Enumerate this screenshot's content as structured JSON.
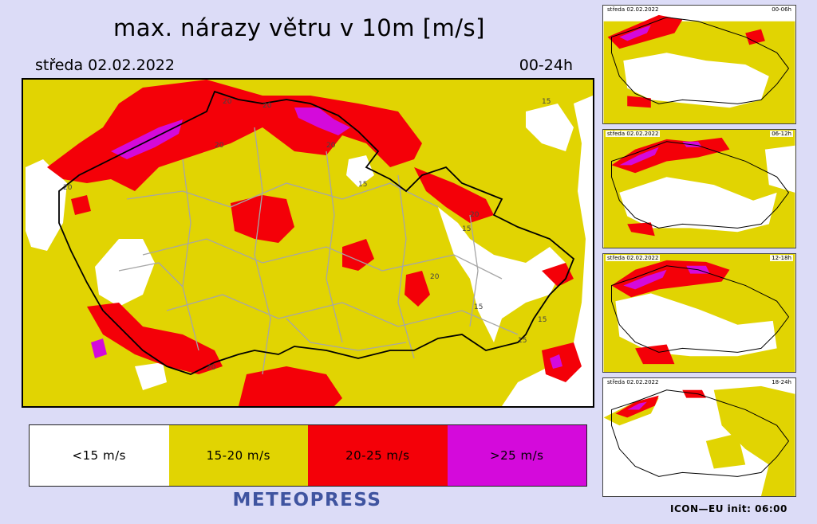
{
  "header": {
    "title": "max. nárazy větru v 10m [m/s]",
    "date": "středa 02.02.2022",
    "period": "00-24h"
  },
  "colors": {
    "below15": "#ffffff",
    "15_20": "#e1d402",
    "20_25": "#f40008",
    "above25": "#d40adb",
    "border": "#000000",
    "districts": "#a6a6a6",
    "brand": "#3f54a0",
    "background": "#dcdcf7"
  },
  "map": {
    "contour_labels": [
      "15",
      "20",
      "20",
      "20",
      "20",
      "15",
      "15",
      "20",
      "20",
      "15",
      "15",
      "20",
      "15",
      "20"
    ]
  },
  "legend": {
    "items": [
      {
        "label": "<15 m/s",
        "color": "#ffffff"
      },
      {
        "label": "15-20 m/s",
        "color": "#e1d402"
      },
      {
        "label": "20-25 m/s",
        "color": "#f40008"
      },
      {
        "label": ">25 m/s",
        "color": "#d40adb"
      }
    ]
  },
  "brand": "METEOPRESS",
  "footer": "ICON—EU  init: 06:00",
  "panels": [
    {
      "date": "středa 02.02.2022",
      "period": "00-06h"
    },
    {
      "date": "středa 02.02.2022",
      "period": "06-12h"
    },
    {
      "date": "středa 02.02.2022",
      "period": "12-18h"
    },
    {
      "date": "středa 02.02.2022",
      "period": "18-24h"
    }
  ]
}
